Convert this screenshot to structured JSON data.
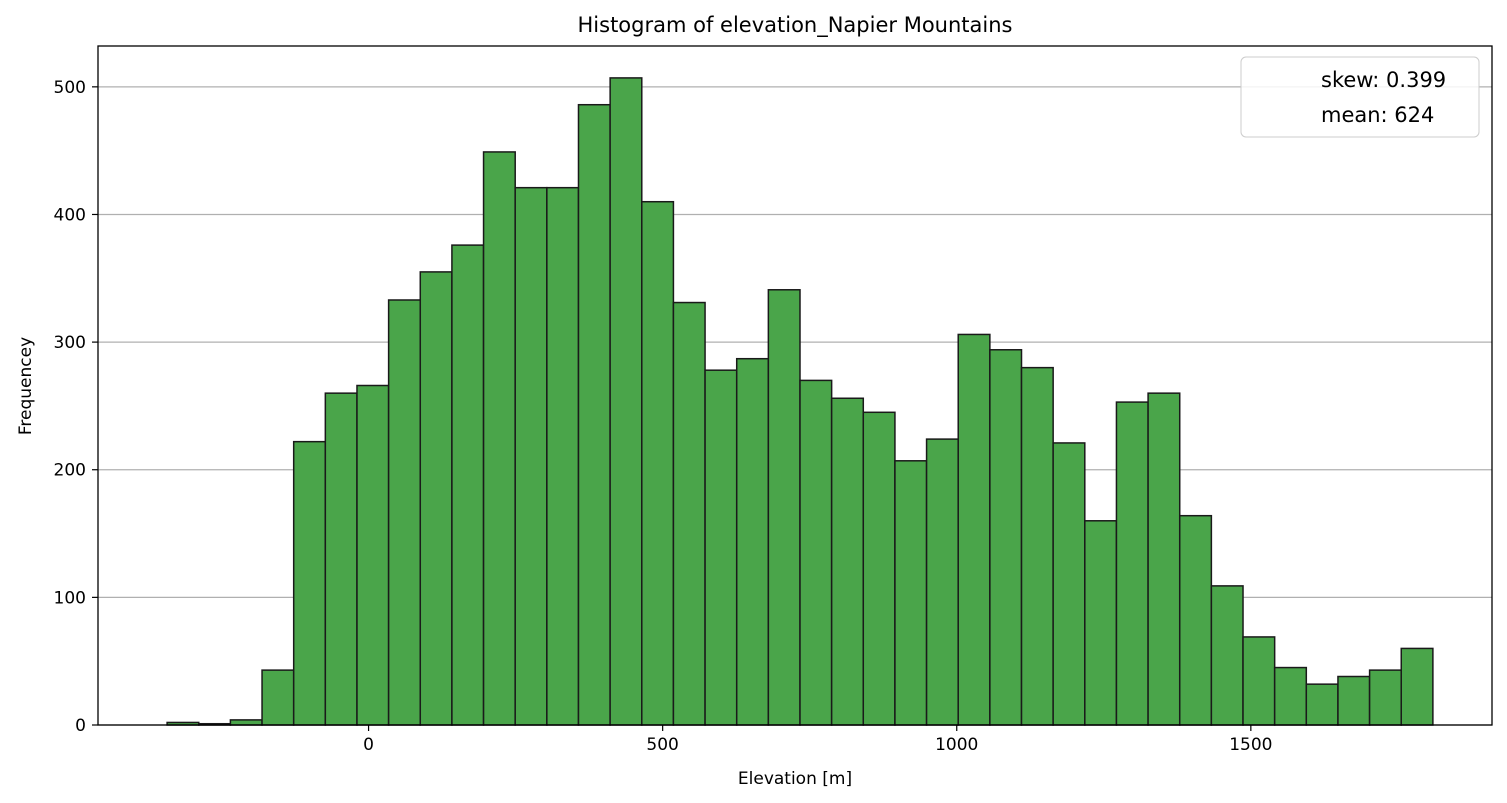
{
  "chart_data": {
    "type": "bar",
    "title": "Histogram of elevation_Napier Mountains",
    "xlabel": "Elevation [m]",
    "ylabel": "Frequencey",
    "xlim": [
      -460,
      1910
    ],
    "ylim": [
      0,
      532
    ],
    "bin_start": -342.5,
    "bin_width": 53.8,
    "values": [
      2,
      1,
      4,
      43,
      222,
      260,
      266,
      333,
      355,
      376,
      449,
      421,
      421,
      486,
      507,
      410,
      331,
      278,
      287,
      341,
      270,
      256,
      245,
      207,
      224,
      306,
      294,
      280,
      221,
      160,
      253,
      260,
      164,
      109,
      69,
      45,
      32,
      38,
      43,
      60
    ],
    "x_ticks": [
      0,
      500,
      1000,
      1500
    ],
    "x_tick_labels": [
      "0",
      "500",
      "1000",
      "1500"
    ],
    "y_ticks": [
      0,
      100,
      200,
      300,
      400,
      500
    ],
    "y_tick_labels": [
      "0",
      "100",
      "200",
      "300",
      "400",
      "500"
    ],
    "grid": "y",
    "bar_color": "#4aa54a",
    "edge_color": "#1a1a1a",
    "legend": {
      "placement": "top-right",
      "entries": [
        "skew: 0.399",
        "mean: 624"
      ]
    }
  }
}
